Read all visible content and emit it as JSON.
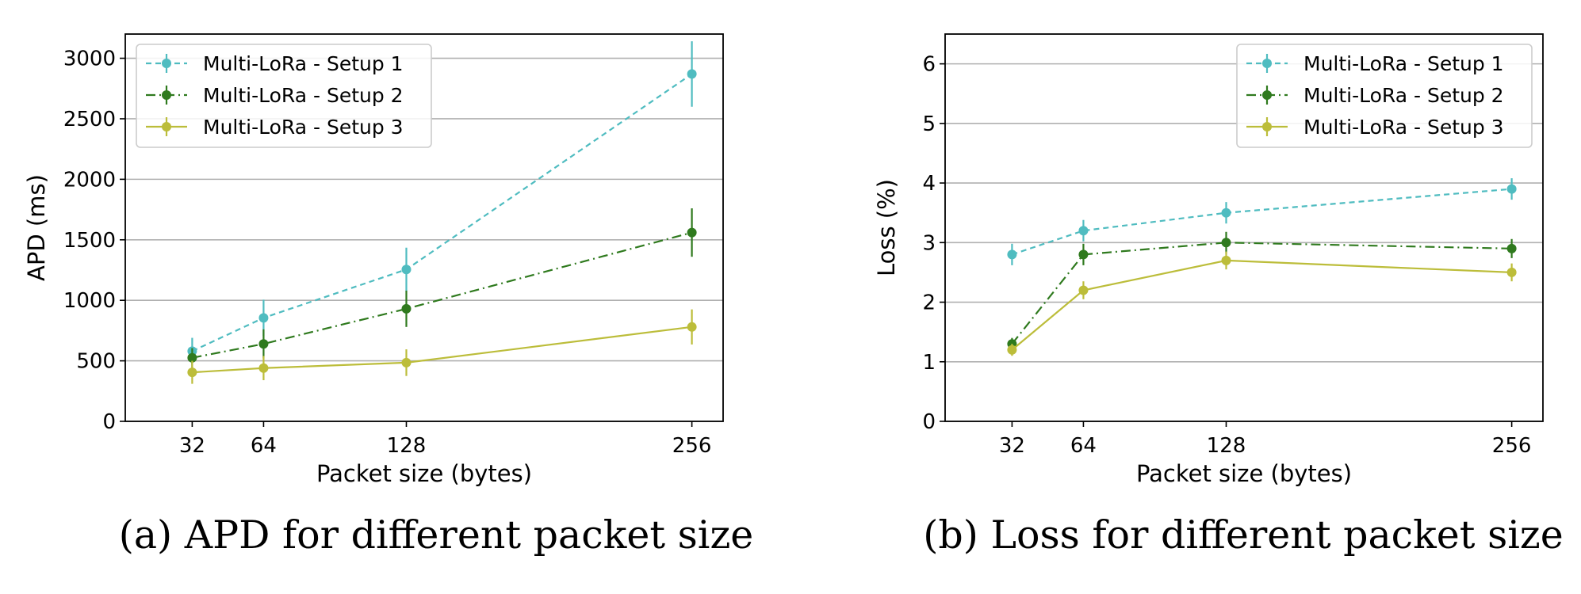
{
  "colors": {
    "setup1": "#4fbcc0",
    "setup2": "#2f7a1e",
    "setup3": "#bcbd3a",
    "grid": "#b0b0b0"
  },
  "chart_data": [
    {
      "type": "line",
      "caption": "(a) APD for different packet size",
      "xlabel": "Packet size (bytes)",
      "ylabel": "APD (ms)",
      "x": [
        32,
        64,
        128,
        256
      ],
      "xticks": [
        "32",
        "64",
        "128",
        "256"
      ],
      "xlim": [
        2,
        270
      ],
      "ylim": [
        0,
        3200
      ],
      "yticks": [
        "0",
        "500",
        "1000",
        "1500",
        "2000",
        "2500",
        "3000"
      ],
      "ytick_values": [
        0,
        500,
        1000,
        1500,
        2000,
        2500,
        3000
      ],
      "grid": "horizontal",
      "legend": "top-left",
      "series": [
        {
          "name": "Multi-LoRa - Setup 1",
          "style": "dashed",
          "values": [
            580,
            855,
            1255,
            2870
          ],
          "errors": [
            110,
            150,
            180,
            270
          ]
        },
        {
          "name": "Multi-LoRa - Setup 2",
          "style": "dashdot",
          "values": [
            525,
            640,
            930,
            1560
          ],
          "errors": [
            80,
            120,
            150,
            200
          ]
        },
        {
          "name": "Multi-LoRa - Setup 3",
          "style": "solid",
          "values": [
            405,
            440,
            485,
            780
          ],
          "errors": [
            95,
            100,
            110,
            145
          ]
        }
      ]
    },
    {
      "type": "line",
      "caption": "(b) Loss for different packet size",
      "xlabel": "Packet size (bytes)",
      "ylabel": "Loss (%)",
      "x": [
        32,
        64,
        128,
        256
      ],
      "xticks": [
        "32",
        "64",
        "128",
        "256"
      ],
      "xlim": [
        2,
        270
      ],
      "ylim": [
        0,
        6.5
      ],
      "yticks": [
        "0",
        "1",
        "2",
        "3",
        "4",
        "5",
        "6"
      ],
      "ytick_values": [
        0,
        1,
        2,
        3,
        4,
        5,
        6
      ],
      "grid": "horizontal",
      "legend": "top-right",
      "series": [
        {
          "name": "Multi-LoRa - Setup 1",
          "style": "dashed",
          "values": [
            2.8,
            3.2,
            3.5,
            3.9
          ],
          "errors": [
            0.18,
            0.18,
            0.18,
            0.18
          ]
        },
        {
          "name": "Multi-LoRa - Setup 2",
          "style": "dashdot",
          "values": [
            1.3,
            2.8,
            3.0,
            2.9
          ],
          "errors": [
            0.1,
            0.18,
            0.18,
            0.16
          ]
        },
        {
          "name": "Multi-LoRa - Setup 3",
          "style": "solid",
          "values": [
            1.2,
            2.2,
            2.7,
            2.5
          ],
          "errors": [
            0.1,
            0.15,
            0.15,
            0.15
          ]
        }
      ]
    }
  ]
}
